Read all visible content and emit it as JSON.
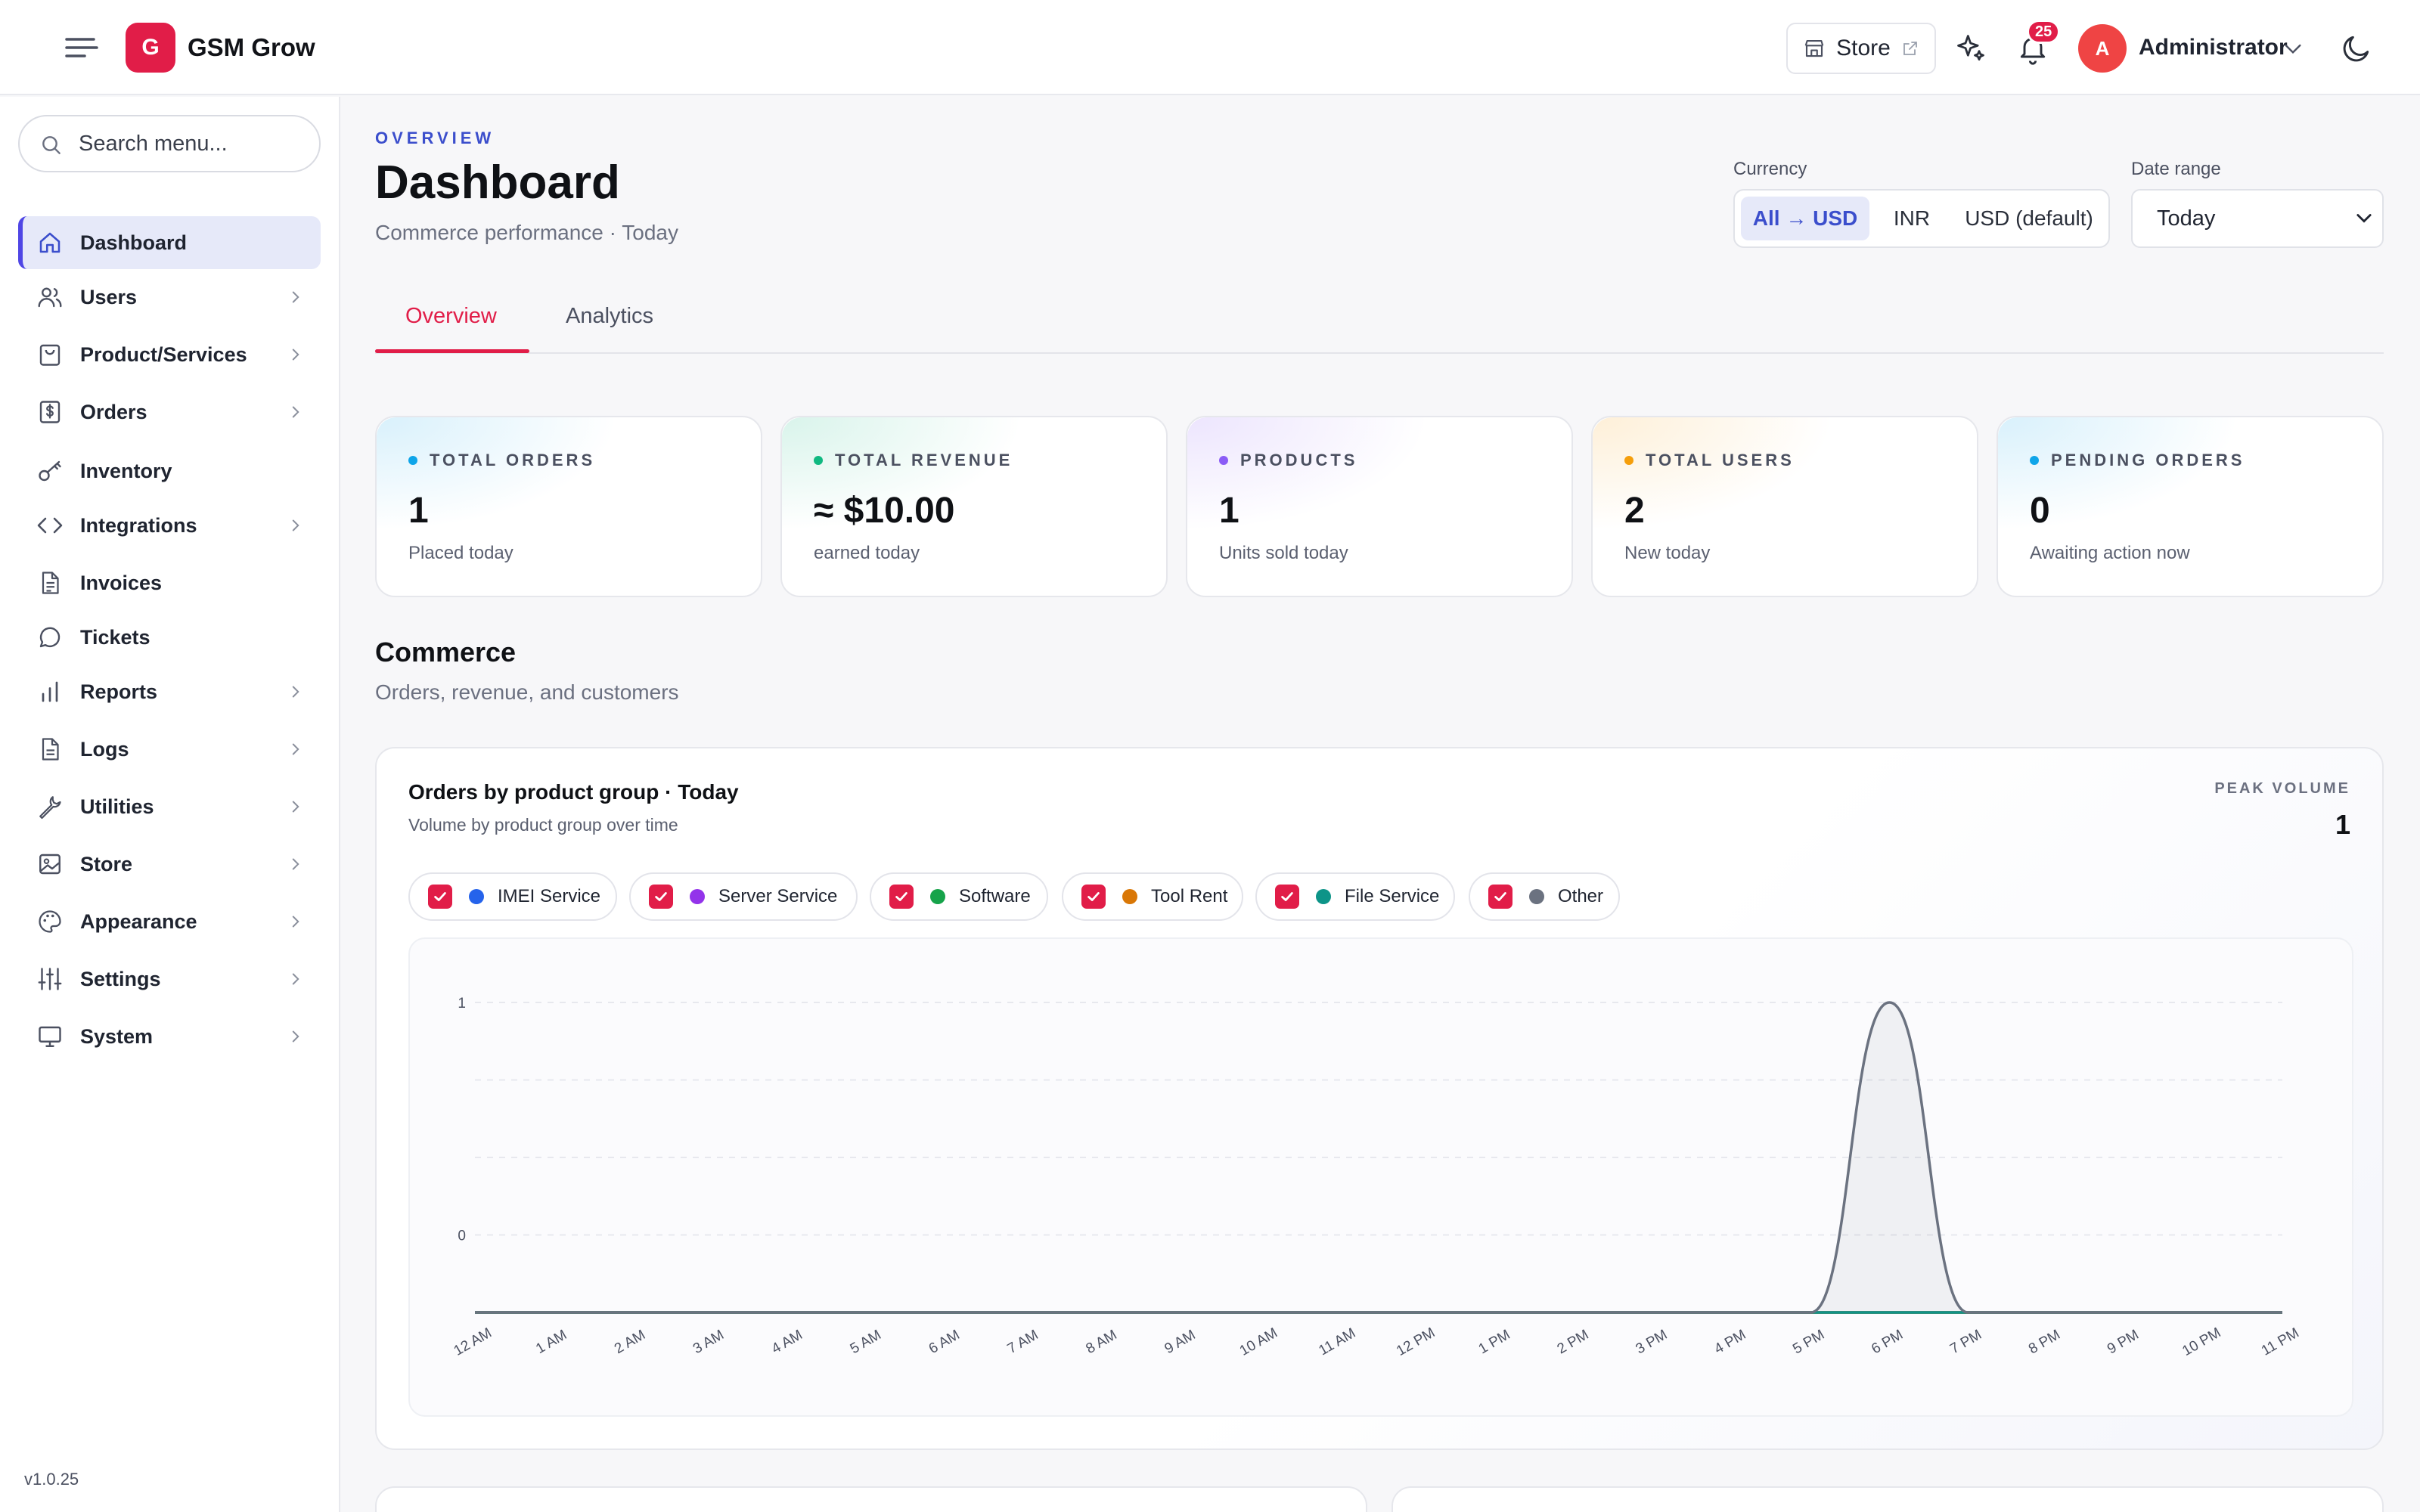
{
  "header": {
    "brand_initial": "G",
    "brand_name": "GSM Grow",
    "store_label": "Store",
    "notifications_count": "25",
    "user_initial": "A",
    "user_name": "Administrator"
  },
  "sidebar": {
    "search_placeholder": "Search menu...",
    "items": [
      {
        "label": "Dashboard",
        "icon": "home-icon",
        "active": true,
        "has_children": false
      },
      {
        "label": "Users",
        "icon": "users-icon",
        "has_children": true
      },
      {
        "label": "Product/Services",
        "icon": "shopping-bag-icon",
        "has_children": true
      },
      {
        "label": "Orders",
        "icon": "receipt-dollar-icon",
        "has_children": true
      },
      {
        "label": "Inventory",
        "icon": "key-icon",
        "has_children": false
      },
      {
        "label": "Integrations",
        "icon": "code-icon",
        "has_children": true
      },
      {
        "label": "Invoices",
        "icon": "file-text-icon",
        "has_children": false
      },
      {
        "label": "Tickets",
        "icon": "chat-bubble-icon",
        "has_children": false
      },
      {
        "label": "Reports",
        "icon": "bar-chart-icon",
        "has_children": true
      },
      {
        "label": "Logs",
        "icon": "document-icon",
        "has_children": true
      },
      {
        "label": "Utilities",
        "icon": "wrench-icon",
        "has_children": true
      },
      {
        "label": "Store",
        "icon": "image-icon",
        "has_children": true
      },
      {
        "label": "Appearance",
        "icon": "palette-icon",
        "has_children": true
      },
      {
        "label": "Settings",
        "icon": "sliders-icon",
        "has_children": true
      },
      {
        "label": "System",
        "icon": "monitor-icon",
        "has_children": true
      }
    ],
    "version": "v1.0.25"
  },
  "page": {
    "eyebrow": "OVERVIEW",
    "title": "Dashboard",
    "subtitle": "Commerce performance · Today",
    "currency_label": "Currency",
    "currency_options": [
      "All → USD",
      "INR",
      "USD (default)"
    ],
    "currency_selected": "All → USD",
    "date_range_label": "Date range",
    "date_range_value": "Today",
    "tabs": [
      "Overview",
      "Analytics"
    ],
    "active_tab": "Overview"
  },
  "kpis": [
    {
      "label": "TOTAL ORDERS",
      "value": "1",
      "sub": "Placed today",
      "color": "#0ea5e9"
    },
    {
      "label": "TOTAL REVENUE",
      "value": "≈ $10.00",
      "sub": "earned today",
      "color": "#10b981"
    },
    {
      "label": "PRODUCTS",
      "value": "1",
      "sub": "Units sold today",
      "color": "#8b5cf6"
    },
    {
      "label": "TOTAL USERS",
      "value": "2",
      "sub": "New today",
      "color": "#f59e0b"
    },
    {
      "label": "PENDING ORDERS",
      "value": "0",
      "sub": "Awaiting action now",
      "color": "#0ea5e9"
    }
  ],
  "commerce": {
    "title": "Commerce",
    "subtitle": "Orders, revenue, and customers"
  },
  "chart_card": {
    "title": "Orders by product group · Today",
    "subtitle": "Volume by product group over time",
    "peak_label": "PEAK VOLUME",
    "peak_value": "1"
  },
  "chart_data": {
    "type": "area",
    "x": [
      "12 AM",
      "1 AM",
      "2 AM",
      "3 AM",
      "4 AM",
      "5 AM",
      "6 AM",
      "7 AM",
      "8 AM",
      "9 AM",
      "10 AM",
      "11 AM",
      "12 PM",
      "1 PM",
      "2 PM",
      "3 PM",
      "4 PM",
      "5 PM",
      "6 PM",
      "7 PM",
      "8 PM",
      "9 PM",
      "10 PM",
      "11 PM"
    ],
    "y_ticks": [
      "1",
      "0"
    ],
    "ylim": [
      0,
      1
    ],
    "series": [
      {
        "name": "IMEI Service",
        "color": "#2563eb",
        "checked": true,
        "values": [
          0,
          0,
          0,
          0,
          0,
          0,
          0,
          0,
          0,
          0,
          0,
          0,
          0,
          0,
          0,
          0,
          0,
          0,
          0,
          0,
          0,
          0,
          0,
          0
        ]
      },
      {
        "name": "Server Service",
        "color": "#9333ea",
        "checked": true,
        "values": [
          0,
          0,
          0,
          0,
          0,
          0,
          0,
          0,
          0,
          0,
          0,
          0,
          0,
          0,
          0,
          0,
          0,
          0,
          0,
          0,
          0,
          0,
          0,
          0
        ]
      },
      {
        "name": "Software",
        "color": "#16a34a",
        "checked": true,
        "values": [
          0,
          0,
          0,
          0,
          0,
          0,
          0,
          0,
          0,
          0,
          0,
          0,
          0,
          0,
          0,
          0,
          0,
          0,
          0,
          0,
          0,
          0,
          0,
          0
        ]
      },
      {
        "name": "Tool Rent",
        "color": "#d97706",
        "checked": true,
        "values": [
          0,
          0,
          0,
          0,
          0,
          0,
          0,
          0,
          0,
          0,
          0,
          0,
          0,
          0,
          0,
          0,
          0,
          0,
          0,
          0,
          0,
          0,
          0,
          0
        ]
      },
      {
        "name": "File Service",
        "color": "#0d9488",
        "checked": true,
        "values": [
          0,
          0,
          0,
          0,
          0,
          0,
          0,
          0,
          0,
          0,
          0,
          0,
          0,
          0,
          0,
          0,
          0,
          0,
          0,
          0,
          0,
          0,
          0,
          0
        ]
      },
      {
        "name": "Other",
        "color": "#6b7280",
        "checked": true,
        "values": [
          0,
          0,
          0,
          0,
          0,
          0,
          0,
          0,
          0,
          0,
          0,
          0,
          0,
          0,
          0,
          0,
          0,
          0,
          1,
          0,
          0,
          0,
          0,
          0
        ]
      }
    ],
    "grid": true
  }
}
